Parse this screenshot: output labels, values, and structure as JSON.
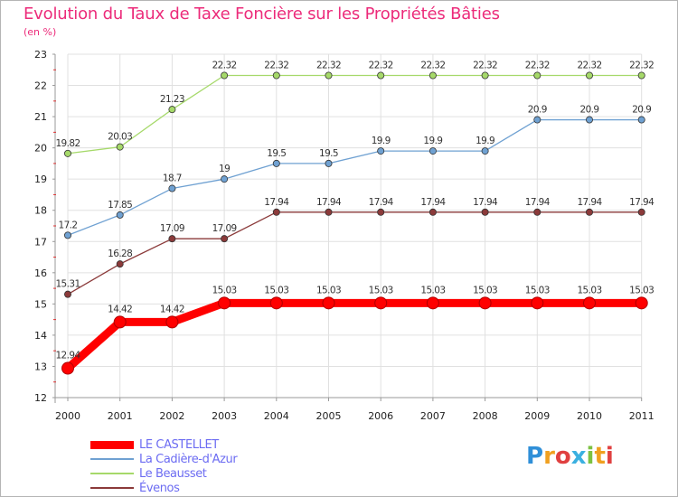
{
  "title": "Evolution du Taux de Taxe Foncière sur les Propriétés Bâties",
  "subtitle": "(en %)",
  "logo_text": "Proxiti",
  "chart_data": {
    "type": "line",
    "title": "Evolution du Taux de Taxe Foncière sur les Propriétés Bâties",
    "ylabel": "(en %)",
    "xlabel": "",
    "categories": [
      "2000",
      "2001",
      "2002",
      "2003",
      "2004",
      "2005",
      "2006",
      "2007",
      "2008",
      "2009",
      "2010",
      "2011"
    ],
    "ylim": [
      12,
      23
    ],
    "yticks": [
      12,
      13,
      14,
      15,
      16,
      17,
      18,
      19,
      20,
      21,
      22,
      23
    ],
    "grid": true,
    "legend_position": "bottom-left",
    "series": [
      {
        "name": "LE CASTELLET",
        "color": "#ff0000",
        "values": [
          12.94,
          14.42,
          14.42,
          15.03,
          15.03,
          15.03,
          15.03,
          15.03,
          15.03,
          15.03,
          15.03,
          15.03
        ],
        "labels": [
          "12.94",
          "14.42",
          "14.42",
          "15.03",
          "15.03",
          "15.03",
          "15.03",
          "15.03",
          "15.03",
          "15.03",
          "15.03",
          "15.03"
        ]
      },
      {
        "name": "La Cadière-d'Azur",
        "color": "#6fa1d2",
        "values": [
          17.2,
          17.85,
          18.7,
          19,
          19.5,
          19.5,
          19.9,
          19.9,
          19.9,
          20.9,
          20.9,
          20.9
        ],
        "labels": [
          "17.2",
          "17.85",
          "18.7",
          "19",
          "19.5",
          "19.5",
          "19.9",
          "19.9",
          "19.9",
          "20.9",
          "20.9",
          "20.9"
        ]
      },
      {
        "name": "Le Beausset",
        "color": "#a6d96a",
        "values": [
          19.82,
          20.03,
          21.23,
          22.32,
          22.32,
          22.32,
          22.32,
          22.32,
          22.32,
          22.32,
          22.32,
          22.32
        ],
        "labels": [
          "19.82",
          "20.03",
          "21.23",
          "22.32",
          "22.32",
          "22.32",
          "22.32",
          "22.32",
          "22.32",
          "22.32",
          "22.32",
          "22.32"
        ]
      },
      {
        "name": "Évenos",
        "color": "#8b3a3a",
        "values": [
          15.31,
          16.28,
          17.09,
          17.09,
          17.94,
          17.94,
          17.94,
          17.94,
          17.94,
          17.94,
          17.94,
          17.94
        ],
        "labels": [
          "15.31",
          "16.28",
          "17.09",
          "17.09",
          "17.94",
          "17.94",
          "17.94",
          "17.94",
          "17.94",
          "17.94",
          "17.94",
          "17.94"
        ]
      }
    ]
  }
}
